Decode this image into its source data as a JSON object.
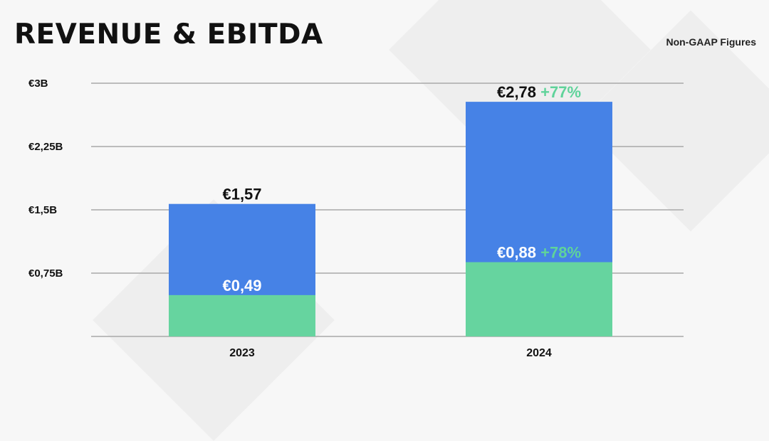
{
  "title": "REVENUE & EBITDA",
  "subtitle": "Non-GAAP Figures",
  "colors": {
    "revenue": "#4682e6",
    "ebitda": "#66d49f",
    "positive": "#5fd39a"
  },
  "chart_data": {
    "type": "bar",
    "stacking": "overlay",
    "categories": [
      "2023",
      "2024"
    ],
    "series": [
      {
        "values": [
          1.57,
          2.78
        ],
        "labels": [
          "€1,57",
          "€2,78"
        ],
        "growth": [
          "",
          "+77%"
        ]
      },
      {
        "values": [
          0.49,
          0.88
        ],
        "labels": [
          "€0,49",
          "€0,88"
        ],
        "growth": [
          "",
          "+78%"
        ]
      }
    ],
    "y_ticks": [
      0.75,
      1.5,
      2.25,
      3
    ],
    "y_tick_labels": [
      "€0,75B",
      "€1,5B",
      "€2,25B",
      "€3B"
    ],
    "ylim": [
      0,
      3
    ],
    "grid": true,
    "legend": "none"
  }
}
